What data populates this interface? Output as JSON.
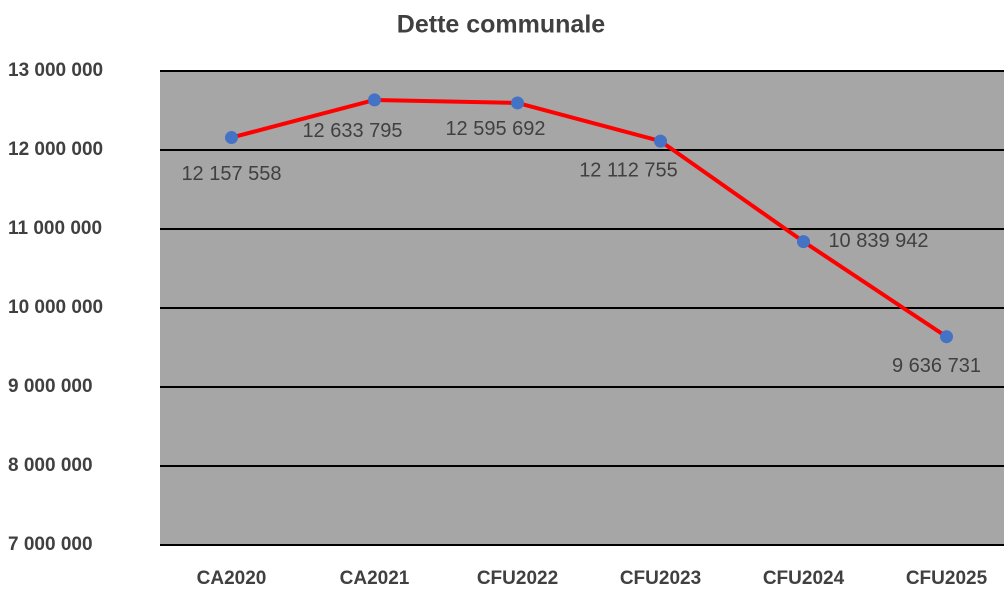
{
  "chart_data": {
    "type": "line",
    "title": "Dette communale",
    "categories": [
      "CA2020",
      "CA2021",
      "CFU2022",
      "CFU2023",
      "CFU2024",
      "CFU2025"
    ],
    "series": [
      {
        "name": "Dette",
        "color": "#ff0000",
        "marker_color": "#4472c4",
        "values": [
          12157558,
          12633795,
          12595692,
          12112755,
          10839942,
          9636731
        ],
        "value_labels": [
          "12 157 558",
          "12 633 795",
          "12 595 692",
          "12 112 755",
          "10 839 942",
          "9 636 731"
        ]
      }
    ],
    "ylim": [
      7000000,
      13000000
    ],
    "yticks": [
      {
        "value": 7000000,
        "label": "7 000 000"
      },
      {
        "value": 8000000,
        "label": "8 000 000"
      },
      {
        "value": 9000000,
        "label": "9 000 000"
      },
      {
        "value": 10000000,
        "label": "10 000 000"
      },
      {
        "value": 11000000,
        "label": "11 000 000"
      },
      {
        "value": 12000000,
        "label": "12 000 000"
      },
      {
        "value": 13000000,
        "label": "13 000 000"
      }
    ],
    "grid": true
  }
}
